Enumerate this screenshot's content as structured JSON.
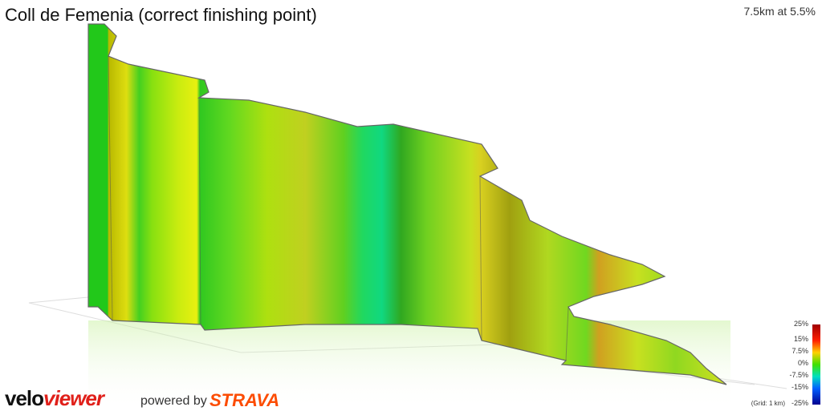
{
  "title": "Coll de Femenia (correct finishing point)",
  "summary": "7.5km at 5.5%",
  "legend": {
    "ticks": [
      "25%",
      "15%",
      "7.5%",
      "0%",
      "-7.5%",
      "-15%",
      "-25%"
    ],
    "note": "(Grid: 1 km)"
  },
  "footer": {
    "logo_velo": "velo",
    "logo_viewer": "viewer",
    "powered_by": "powered by",
    "strava": "STRAVA"
  }
}
